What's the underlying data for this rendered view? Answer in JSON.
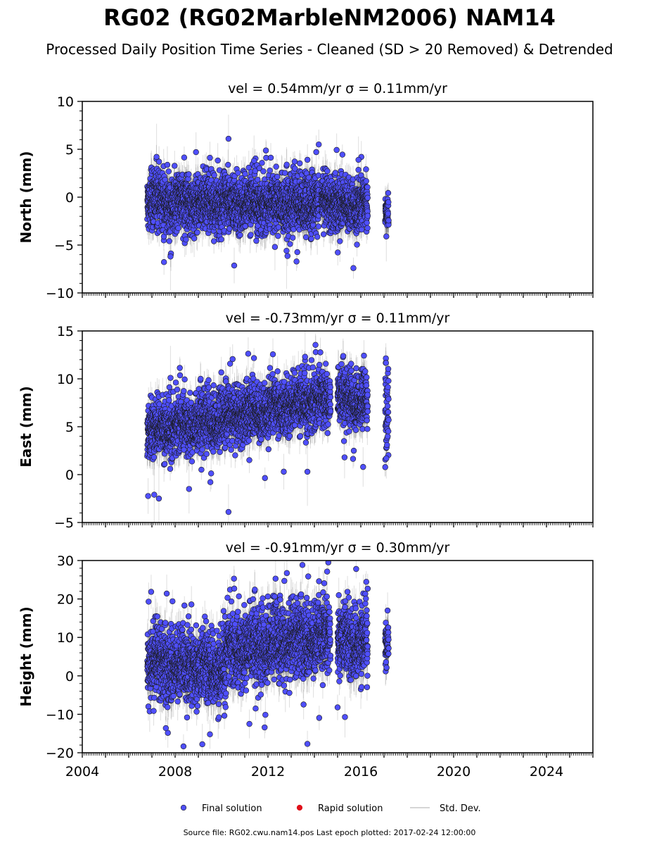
{
  "title": "RG02 (RG02MarbleNM2006) NAM14",
  "subtitle": "Processed Daily Position Time Series - Cleaned (SD > 20 Removed) & Detrended",
  "footer": "Source file: RG02.cwu.nam14.pos  Last epoch plotted: 2017-02-24 12:00:00",
  "colors": {
    "final": "#4f4fff",
    "rapid": "#e0101a",
    "stddev": "#c8c8c8"
  },
  "legend": [
    {
      "label": "Final solution",
      "marker": "dot",
      "color": "#4f4fff"
    },
    {
      "label": "Rapid solution",
      "marker": "dot",
      "color": "#e0101a"
    },
    {
      "label": "Std. Dev.",
      "marker": "line",
      "color": "#c8c8c8"
    }
  ],
  "chart_data": [
    {
      "type": "scatter",
      "title": "vel = 0.54mm/yr   σ = 0.11mm/yr",
      "ylabel": "North (mm)",
      "xlim": [
        2004,
        2026
      ],
      "ylim": [
        -10,
        10
      ],
      "yticks": [
        -10,
        -5,
        0,
        5,
        10
      ],
      "xticks": [
        2004,
        2008,
        2012,
        2016,
        2020,
        2024
      ],
      "series": [
        {
          "segments": [
            {
              "x": [
                2006.8,
                2014.2
              ],
              "mean": [
                -0.5,
                -0.8
              ],
              "spread": 1.4,
              "err": 1.4
            },
            {
              "x": [
                2014.3,
                2015.0
              ],
              "mean": [
                -0.5,
                -0.6
              ],
              "spread": 1.3,
              "err": 1.4
            },
            {
              "x": [
                2015.0,
                2016.3
              ],
              "mean": [
                -1.0,
                -0.8
              ],
              "spread": 1.3,
              "err": 1.4
            },
            {
              "x": [
                2017.05,
                2017.2
              ],
              "mean": [
                -1.6,
                -1.6
              ],
              "spread": 0.9,
              "err": 1.4
            }
          ],
          "outliers": [
            {
              "x": 2007.8,
              "y": -6.2
            },
            {
              "x": 2010.3,
              "y": 6.1
            },
            {
              "x": 2008.9,
              "y": 4.7
            },
            {
              "x": 2012.3,
              "y": -5.2
            },
            {
              "x": 2012.8,
              "y": -5.6
            },
            {
              "x": 2015.1,
              "y": -4.6
            },
            {
              "x": 2007.2,
              "y": 4.2
            },
            {
              "x": 2011.4,
              "y": 3.8
            },
            {
              "x": 2015.9,
              "y": 3.9
            },
            {
              "x": 2017.1,
              "y": -4.1
            }
          ]
        }
      ]
    },
    {
      "type": "scatter",
      "title": "vel = -0.73mm/yr   σ = 0.11mm/yr",
      "ylabel": "East (mm)",
      "xlim": [
        2004,
        2026
      ],
      "ylim": [
        -5,
        15
      ],
      "yticks": [
        -5,
        0,
        5,
        10,
        15
      ],
      "xticks": [
        2004,
        2008,
        2012,
        2016,
        2020,
        2024
      ],
      "series": [
        {
          "segments": [
            {
              "x": [
                2006.8,
                2009.5
              ],
              "mean": [
                4.5,
                5.5
              ],
              "spread": 1.4,
              "err": 1.4
            },
            {
              "x": [
                2009.5,
                2014.7
              ],
              "mean": [
                5.5,
                8.0
              ],
              "spread": 1.4,
              "err": 1.4
            },
            {
              "x": [
                2015.0,
                2016.3
              ],
              "mean": [
                8.0,
                7.5
              ],
              "spread": 1.3,
              "err": 1.4
            },
            {
              "x": [
                2017.05,
                2017.2
              ],
              "mean": [
                5.8,
                5.8
              ],
              "spread": 2.2,
              "err": 1.4
            }
          ],
          "outliers": [
            {
              "x": 2007.1,
              "y": -2.1
            },
            {
              "x": 2007.3,
              "y": -2.5
            },
            {
              "x": 2010.3,
              "y": -3.9
            },
            {
              "x": 2008.6,
              "y": -1.5
            },
            {
              "x": 2013.6,
              "y": 12.3
            },
            {
              "x": 2013.7,
              "y": 0.3
            },
            {
              "x": 2015.3,
              "y": 1.8
            },
            {
              "x": 2016.1,
              "y": 0.8
            },
            {
              "x": 2007.8,
              "y": 10.1
            },
            {
              "x": 2017.1,
              "y": 1.7
            }
          ]
        }
      ]
    },
    {
      "type": "scatter",
      "title": "vel = -0.91mm/yr   σ = 0.30mm/yr",
      "ylabel": "Height (mm)",
      "xlim": [
        2004,
        2026
      ],
      "ylim": [
        -20,
        30
      ],
      "yticks": [
        -20,
        -10,
        0,
        10,
        20,
        30
      ],
      "xticks": [
        2004,
        2008,
        2012,
        2016,
        2020,
        2024
      ],
      "series": [
        {
          "segments": [
            {
              "x": [
                2006.8,
                2010.2
              ],
              "mean": [
                3.0,
                1.5
              ],
              "spread": 4.5,
              "err": 4.0
            },
            {
              "x": [
                2010.2,
                2014.7
              ],
              "mean": [
                6.5,
                10.0
              ],
              "spread": 4.5,
              "err": 4.0
            },
            {
              "x": [
                2015.0,
                2016.3
              ],
              "mean": [
                9.0,
                8.5
              ],
              "spread": 4.5,
              "err": 4.0
            },
            {
              "x": [
                2017.05,
                2017.2
              ],
              "mean": [
                8.0,
                8.0
              ],
              "spread": 3.0,
              "err": 4.0
            }
          ],
          "outliers": [
            {
              "x": 2014.6,
              "y": 29.5
            },
            {
              "x": 2015.8,
              "y": 27.8
            },
            {
              "x": 2013.7,
              "y": -17.7
            },
            {
              "x": 2009.5,
              "y": -15.2
            },
            {
              "x": 2007.6,
              "y": -13.6
            },
            {
              "x": 2015.0,
              "y": -8.2
            },
            {
              "x": 2014.2,
              "y": 24.6
            },
            {
              "x": 2011.2,
              "y": -12.5
            },
            {
              "x": 2008.4,
              "y": 18.3
            }
          ]
        }
      ]
    }
  ]
}
